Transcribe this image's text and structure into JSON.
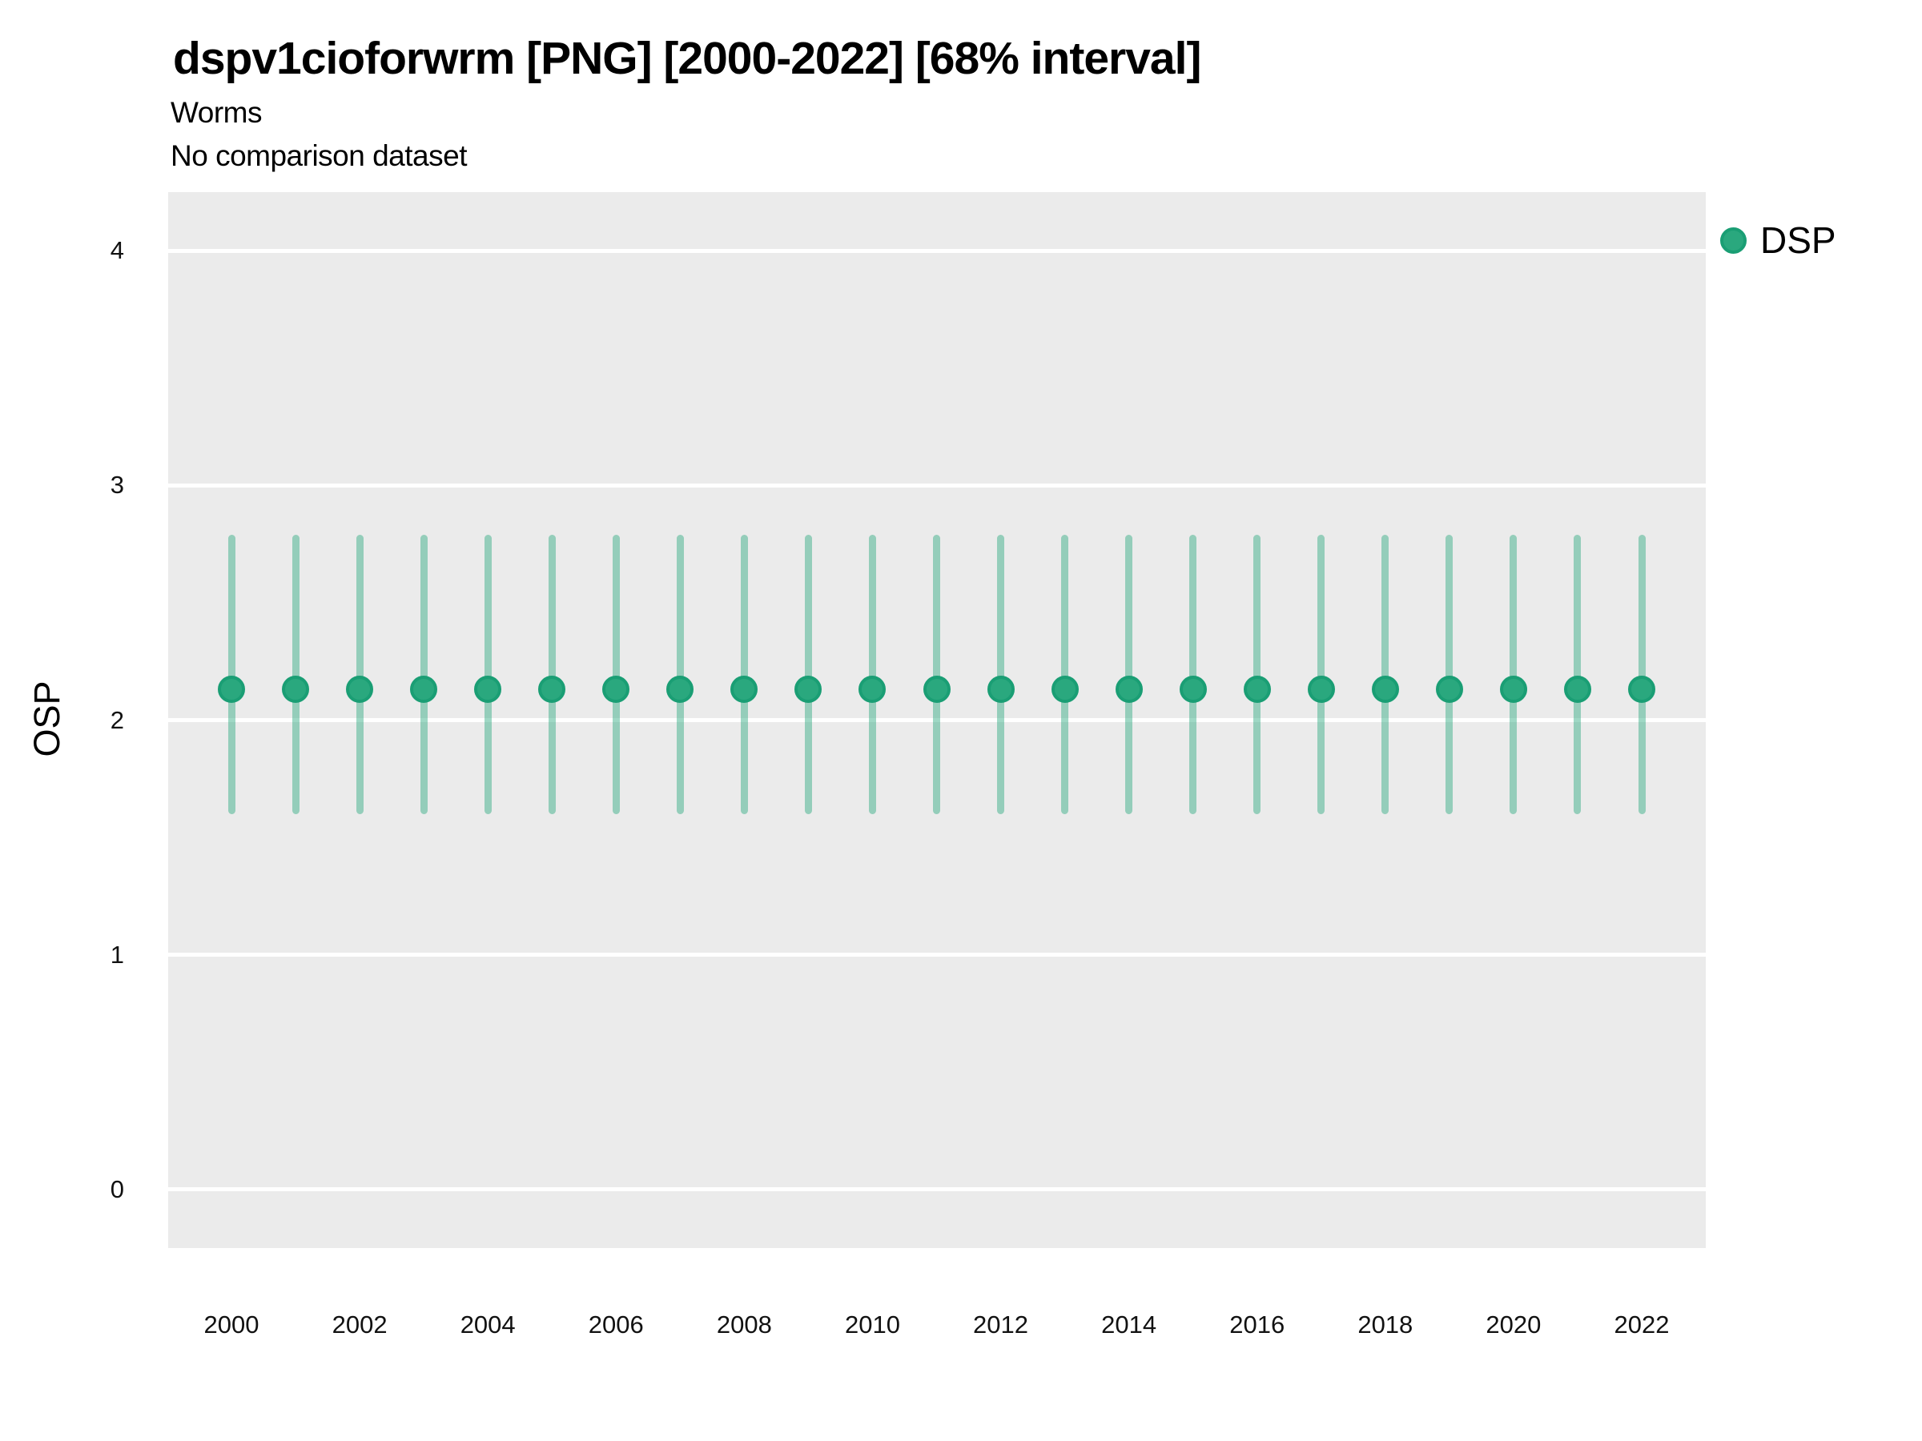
{
  "chart_data": {
    "type": "pointrange",
    "title": "dspv1cioforwrm [PNG] [2000-2022] [68% interval]",
    "subtitle_lines": [
      "Worms",
      "No comparison dataset"
    ],
    "xlabel": "",
    "ylabel": "OSP",
    "interval_label": "68% interval",
    "legend_position": "right",
    "grid": "horizontal major gridlines only, white on gray panel",
    "x": [
      2000,
      2001,
      2002,
      2003,
      2004,
      2005,
      2006,
      2007,
      2008,
      2009,
      2010,
      2011,
      2012,
      2013,
      2014,
      2015,
      2016,
      2017,
      2018,
      2019,
      2020,
      2021,
      2022
    ],
    "series": [
      {
        "name": "DSP",
        "values": [
          2.13,
          2.13,
          2.13,
          2.13,
          2.13,
          2.13,
          2.13,
          2.13,
          2.13,
          2.13,
          2.13,
          2.13,
          2.13,
          2.13,
          2.13,
          2.13,
          2.13,
          2.13,
          2.13,
          2.13,
          2.13,
          2.13,
          2.13
        ],
        "lower": [
          1.6,
          1.6,
          1.6,
          1.6,
          1.6,
          1.6,
          1.6,
          1.6,
          1.6,
          1.6,
          1.6,
          1.6,
          1.6,
          1.6,
          1.6,
          1.6,
          1.6,
          1.6,
          1.6,
          1.6,
          1.6,
          1.6,
          1.6
        ],
        "upper": [
          2.79,
          2.79,
          2.79,
          2.79,
          2.79,
          2.79,
          2.79,
          2.79,
          2.79,
          2.79,
          2.79,
          2.79,
          2.79,
          2.79,
          2.79,
          2.79,
          2.79,
          2.79,
          2.79,
          2.79,
          2.79,
          2.79,
          2.79
        ]
      }
    ],
    "ylim": [
      -0.25,
      4.25
    ],
    "yticks": [
      0,
      1,
      2,
      3,
      4
    ],
    "xticks": [
      2000,
      2002,
      2004,
      2006,
      2008,
      2010,
      2012,
      2014,
      2016,
      2018,
      2020,
      2022
    ],
    "colors": {
      "point_fill": "#2aa87e",
      "point_stroke": "#1a9e74",
      "range_line": "rgba(42,168,126,0.45)",
      "panel_bg": "#EBEBEB",
      "gridline": "#ffffff",
      "text": "#000000"
    }
  }
}
